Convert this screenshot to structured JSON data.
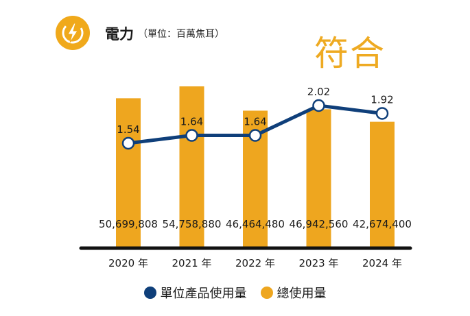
{
  "header": {
    "title": "電力",
    "unit": "（單位：百萬焦耳）",
    "status": "符合"
  },
  "legend": {
    "line_label": "單位產品使用量",
    "bar_label": "總使用量"
  },
  "colors": {
    "bar": "#eea61f",
    "line": "#0f3f7a",
    "icon": "#f0a91b",
    "status": "#eeaa22"
  },
  "chart_data": {
    "type": "bar",
    "categories": [
      "2020 年",
      "2021 年",
      "2022 年",
      "2023 年",
      "2024 年"
    ],
    "series": [
      {
        "name": "總使用量",
        "type": "bar",
        "values": [
          50699808,
          54758880,
          46464480,
          46942560,
          42674400
        ],
        "labels": [
          "50,699,808",
          "54,758,880",
          "46,464,480",
          "46,942,560",
          "42,674,400"
        ]
      },
      {
        "name": "單位產品使用量",
        "type": "line",
        "values": [
          1.54,
          1.64,
          1.64,
          2.02,
          1.92
        ],
        "labels": [
          "1.54",
          "1.64",
          "1.64",
          "2.02",
          "1.92"
        ]
      }
    ],
    "xlabel": "",
    "ylabel": ""
  }
}
